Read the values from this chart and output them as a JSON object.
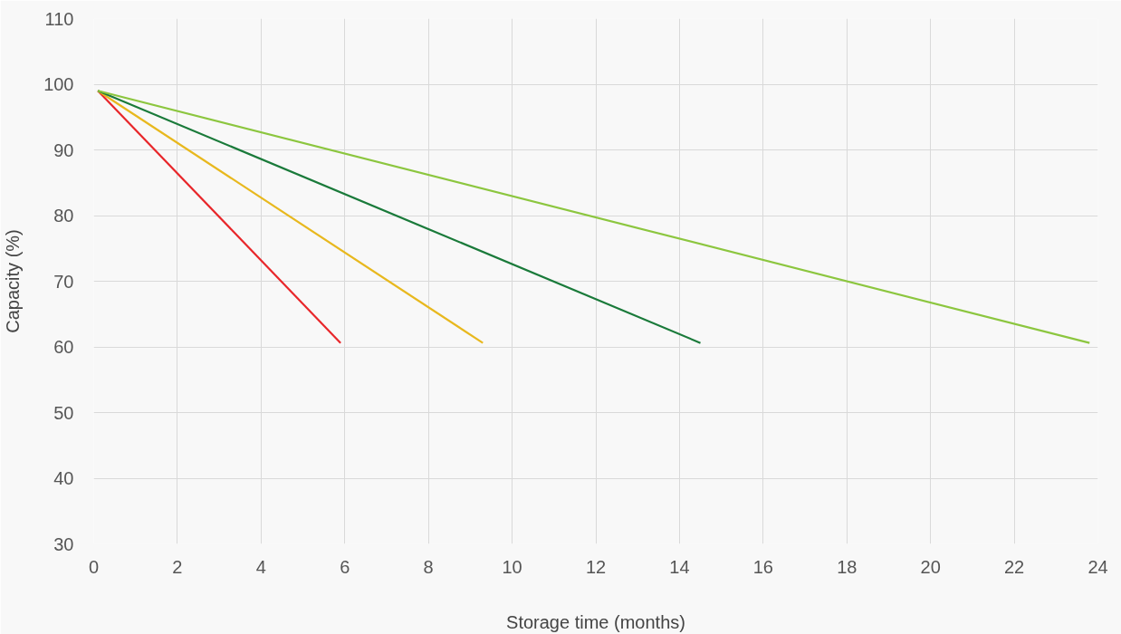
{
  "chart_data": {
    "type": "line",
    "xlabel": "Storage time (months)",
    "ylabel": "Capacity (%)",
    "xlim": [
      0,
      24
    ],
    "ylim": [
      30,
      110
    ],
    "xticks": [
      0,
      2,
      4,
      6,
      8,
      10,
      12,
      14,
      16,
      18,
      20,
      22,
      24
    ],
    "yticks": [
      30,
      40,
      50,
      60,
      70,
      80,
      90,
      100,
      110
    ],
    "grid": true,
    "marker": "none",
    "line_style": "solid",
    "series": [
      {
        "color": "#e8262a",
        "x": [
          0.1,
          5.9
        ],
        "values": [
          99,
          60.6
        ]
      },
      {
        "color": "#e8b81e",
        "x": [
          0.1,
          9.3
        ],
        "values": [
          99,
          60.6
        ]
      },
      {
        "color": "#1a7a3a",
        "x": [
          0.1,
          14.5
        ],
        "values": [
          99,
          60.6
        ]
      },
      {
        "color": "#8cc63f",
        "x": [
          0.1,
          23.8
        ],
        "values": [
          99,
          60.6
        ]
      }
    ]
  }
}
